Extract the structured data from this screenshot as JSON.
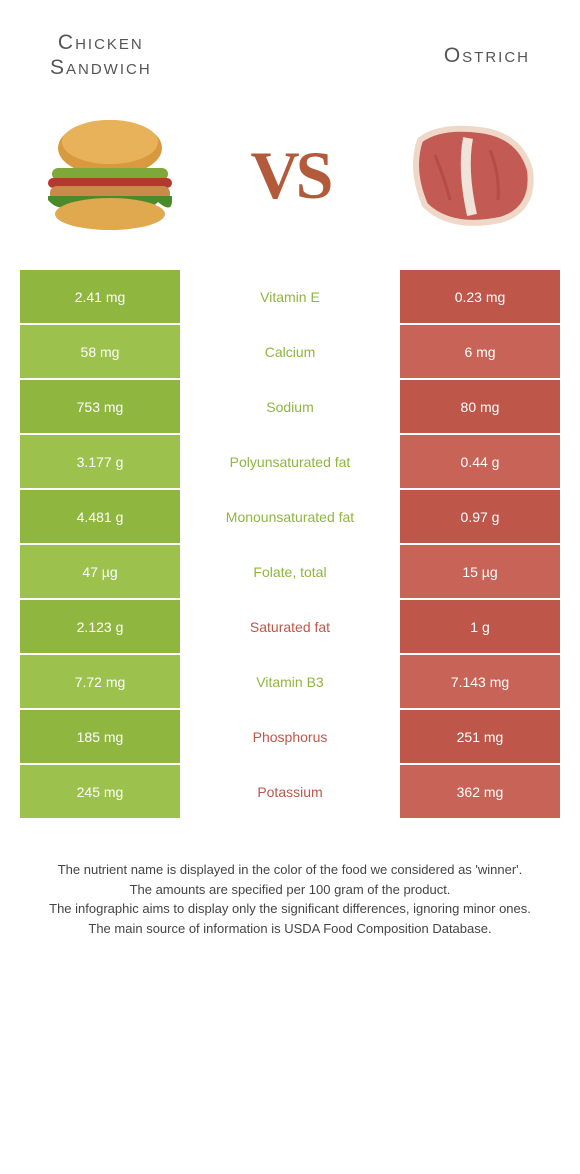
{
  "colors": {
    "left": "#8fb63f",
    "left_alt": "#9cc24d",
    "right": "#be564a",
    "right_alt": "#c76457",
    "nutrient_left": "#8fb63f",
    "nutrient_right": "#be564a"
  },
  "header": {
    "left_title_l1": "Chicken",
    "left_title_l2": "Sandwich",
    "right_title": "Ostrich",
    "vs": "VS"
  },
  "rows": [
    {
      "left": "2.41 mg",
      "name": "Vitamin E",
      "right": "0.23 mg",
      "winner": "left"
    },
    {
      "left": "58 mg",
      "name": "Calcium",
      "right": "6 mg",
      "winner": "left"
    },
    {
      "left": "753 mg",
      "name": "Sodium",
      "right": "80 mg",
      "winner": "left"
    },
    {
      "left": "3.177 g",
      "name": "Polyunsaturated fat",
      "right": "0.44 g",
      "winner": "left"
    },
    {
      "left": "4.481 g",
      "name": "Monounsaturated fat",
      "right": "0.97 g",
      "winner": "left"
    },
    {
      "left": "47 µg",
      "name": "Folate, total",
      "right": "15 µg",
      "winner": "left"
    },
    {
      "left": "2.123 g",
      "name": "Saturated fat",
      "right": "1 g",
      "winner": "right"
    },
    {
      "left": "7.72 mg",
      "name": "Vitamin B3",
      "right": "7.143 mg",
      "winner": "left"
    },
    {
      "left": "185 mg",
      "name": "Phosphorus",
      "right": "251 mg",
      "winner": "right"
    },
    {
      "left": "245 mg",
      "name": "Potassium",
      "right": "362 mg",
      "winner": "right"
    }
  ],
  "footer": {
    "l1": "The nutrient name is displayed in the color of the food we considered as 'winner'.",
    "l2": "The amounts are specified per 100 gram of the product.",
    "l3": "The infographic aims to display only the significant differences, ignoring minor ones.",
    "l4": "The main source of information is USDA Food Composition Database."
  }
}
